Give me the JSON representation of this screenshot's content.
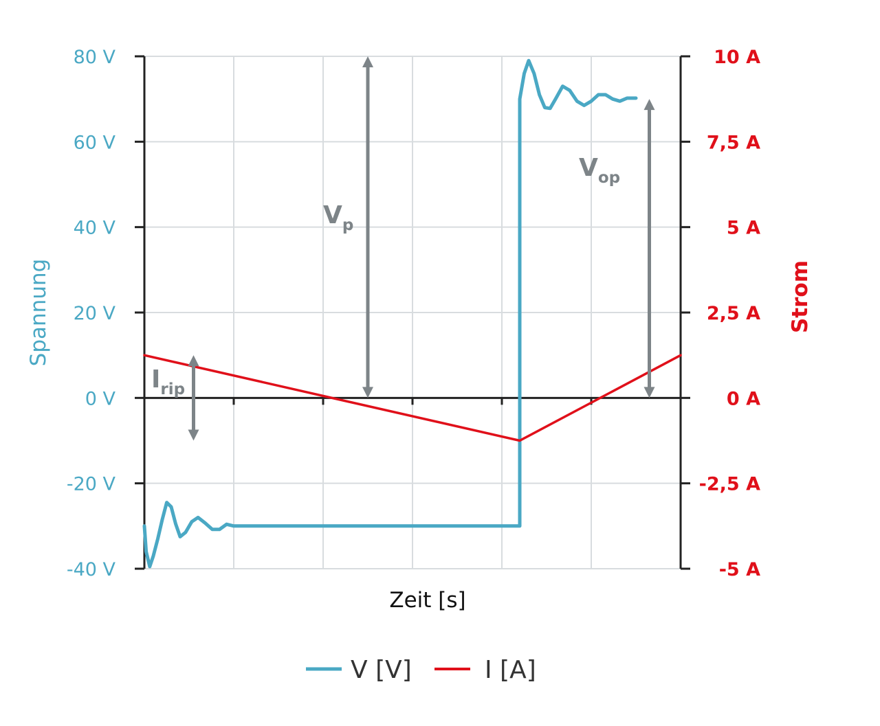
{
  "chart_data": {
    "type": "line",
    "xlabel": "Zeit [s]",
    "ylabel_left": "Spannung",
    "ylabel_right": "Strom",
    "y_left": {
      "range": [
        -40,
        80
      ],
      "ticks": [
        80,
        60,
        40,
        20,
        0,
        -20,
        -40
      ],
      "tick_labels": [
        "80 V",
        "60 V",
        "40 V",
        "20 V",
        "0 V",
        "-20 V",
        "-40 V"
      ]
    },
    "y_right": {
      "range": [
        -5,
        10
      ],
      "ticks": [
        10,
        7.5,
        5,
        2.5,
        0,
        -2.5,
        -5
      ],
      "tick_labels": [
        "10 A",
        "7,5 A",
        "5 A",
        "2,5 A",
        "0 A",
        "-2,5 A",
        "-5 A"
      ]
    },
    "x_range": [
      0,
      6
    ],
    "grid": true,
    "legend_position": "bottom-center",
    "series": [
      {
        "name": "V [V]",
        "axis": "left",
        "color": "#4aa8c4",
        "points": [
          [
            0,
            -30
          ],
          [
            0.02,
            -36
          ],
          [
            0.06,
            -39.5
          ],
          [
            0.1,
            -37
          ],
          [
            0.15,
            -33
          ],
          [
            0.2,
            -28.5
          ],
          [
            0.25,
            -24.5
          ],
          [
            0.3,
            -25.5
          ],
          [
            0.35,
            -29.5
          ],
          [
            0.4,
            -32.5
          ],
          [
            0.46,
            -31.5
          ],
          [
            0.53,
            -29
          ],
          [
            0.6,
            -28
          ],
          [
            0.68,
            -29.3
          ],
          [
            0.76,
            -30.8
          ],
          [
            0.84,
            -30.8
          ],
          [
            0.92,
            -29.6
          ],
          [
            1.0,
            -30
          ],
          [
            4.2,
            -30
          ],
          [
            4.2,
            70
          ],
          [
            4.25,
            76
          ],
          [
            4.3,
            79
          ],
          [
            4.36,
            76
          ],
          [
            4.42,
            71
          ],
          [
            4.48,
            68
          ],
          [
            4.54,
            67.8
          ],
          [
            4.6,
            70
          ],
          [
            4.68,
            73
          ],
          [
            4.76,
            72
          ],
          [
            4.84,
            69.5
          ],
          [
            4.92,
            68.5
          ],
          [
            5.0,
            69.5
          ],
          [
            5.08,
            71
          ],
          [
            5.16,
            71
          ],
          [
            5.24,
            70
          ],
          [
            5.32,
            69.5
          ],
          [
            5.4,
            70.2
          ],
          [
            5.5,
            70.2
          ]
        ]
      },
      {
        "name": "I [A]",
        "axis": "right",
        "color": "#e0101a",
        "points": [
          [
            0,
            1.25
          ],
          [
            4.2,
            -1.25
          ],
          [
            6.0,
            1.25
          ]
        ]
      }
    ],
    "annotations": [
      {
        "main": "V",
        "sub": "p",
        "x": 2.5,
        "from": 0,
        "to": 80,
        "axis": "left"
      },
      {
        "main": "V",
        "sub": "op",
        "x": 5.65,
        "from": 0,
        "to": 70,
        "axis": "left"
      },
      {
        "main": "I",
        "sub": "rip",
        "x": 0.55,
        "from": -1.25,
        "to": 1.25,
        "axis": "right"
      }
    ],
    "colors": {
      "left_axis": "#4aa8c4",
      "right_axis": "#e0101a",
      "annotation": "#7d8488",
      "grid": "#d8dcdf",
      "axis_line": "#222222"
    }
  }
}
